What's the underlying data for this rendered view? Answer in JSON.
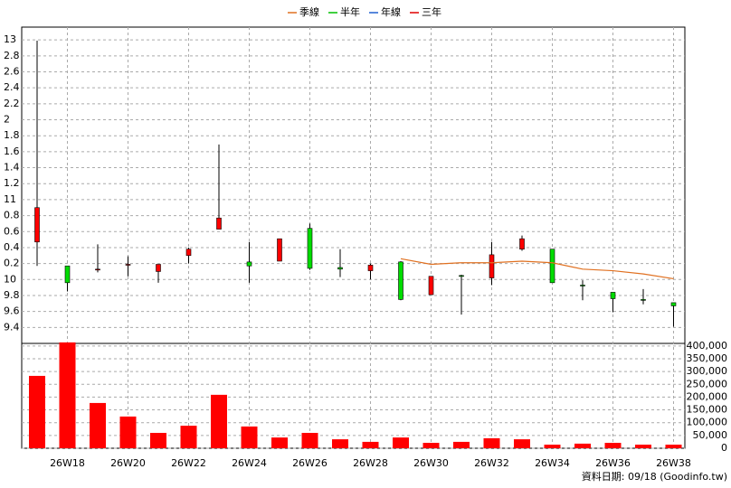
{
  "chart_data": [
    {
      "type": "candlestick",
      "categories": [
        null,
        "26W18",
        null,
        "26W20",
        null,
        "26W22",
        null,
        "26W24",
        null,
        "26W26",
        null,
        "26W28",
        null,
        "26W30",
        null,
        "26W32",
        null,
        "26W34",
        null,
        "26W36",
        null,
        "26W38"
      ],
      "open": [
        10.47,
        10.17,
        10.12,
        10.19,
        10.1,
        10.3,
        10.63,
        10.22,
        10.23,
        10.64,
        10.15,
        10.11,
        10.22,
        9.81,
        10.05,
        10.02,
        10.38,
        10.38,
        9.93,
        9.84,
        9.75,
        9.71
      ],
      "high": [
        12.99,
        10.17,
        10.44,
        10.29,
        10.19,
        10.4,
        11.69,
        10.47,
        10.51,
        10.7,
        10.38,
        10.2,
        10.23,
        10.04,
        10.06,
        10.47,
        10.55,
        10.38,
        9.99,
        9.84,
        9.88,
        9.71
      ],
      "low": [
        10.17,
        9.85,
        10.09,
        10.04,
        9.96,
        10.2,
        10.63,
        9.96,
        10.23,
        10.12,
        10.03,
        10.0,
        9.74,
        9.81,
        9.56,
        9.93,
        10.36,
        9.96,
        9.74,
        9.59,
        9.69,
        9.41
      ],
      "close": [
        10.9,
        9.96,
        10.13,
        10.19,
        10.19,
        10.38,
        10.77,
        10.17,
        10.51,
        10.14,
        10.13,
        10.18,
        9.75,
        10.04,
        10.04,
        10.31,
        10.51,
        9.96,
        9.92,
        9.76,
        9.74,
        9.67
      ],
      "up_color": "#ff0000",
      "down_color": "#00dd00",
      "series": [
        {
          "name": "季線",
          "color": "#e07020",
          "values": [
            null,
            null,
            null,
            null,
            null,
            null,
            null,
            null,
            null,
            null,
            null,
            null,
            10.26,
            10.19,
            10.21,
            10.21,
            10.23,
            10.21,
            10.13,
            10.11,
            10.07,
            10.01
          ]
        },
        {
          "name": "半年",
          "color": "#00c000",
          "values": [
            null,
            null,
            null,
            null,
            null,
            null,
            null,
            null,
            null,
            null,
            null,
            null,
            null,
            null,
            null,
            null,
            null,
            null,
            null,
            null,
            null,
            null
          ]
        },
        {
          "name": "年線",
          "color": "#2060d0",
          "values": [
            null,
            null,
            null,
            null,
            null,
            null,
            null,
            null,
            null,
            null,
            null,
            null,
            null,
            null,
            null,
            null,
            null,
            null,
            null,
            null,
            null,
            null
          ]
        },
        {
          "name": "三年",
          "color": "#e00000",
          "values": [
            null,
            null,
            null,
            null,
            null,
            null,
            null,
            null,
            null,
            null,
            null,
            null,
            null,
            null,
            null,
            null,
            null,
            null,
            null,
            null,
            null,
            null
          ]
        }
      ],
      "ylim": [
        9.2,
        13.16
      ],
      "yticks": [
        13,
        {
          "value": 12.8,
          "label": "2.8"
        },
        {
          "value": 12.6,
          "label": "2.6"
        },
        {
          "value": 12.4,
          "label": "2.4"
        },
        {
          "value": 12.2,
          "label": "2.2"
        },
        {
          "value": 12,
          "label": "2"
        },
        {
          "value": 11.8,
          "label": "1.8"
        },
        {
          "value": 11.6,
          "label": "1.6"
        },
        {
          "value": 11.4,
          "label": "1.4"
        },
        {
          "value": 11.2,
          "label": "1.2"
        },
        11,
        {
          "value": 10.8,
          "label": "0.8"
        },
        {
          "value": 10.6,
          "label": "0.6"
        },
        {
          "value": 10.4,
          "label": "0.4"
        },
        {
          "value": 10.2,
          "label": "0.2"
        },
        10,
        9.8,
        9.6,
        9.4
      ],
      "grid": true
    },
    {
      "type": "bar",
      "values": [
        283000,
        414000,
        177000,
        124000,
        60000,
        88000,
        209000,
        85000,
        42000,
        60000,
        35000,
        25000,
        42000,
        21000,
        25000,
        39000,
        35000,
        14000,
        18000,
        21000,
        14000,
        14000
      ],
      "color": "#ff0000",
      "ylim": [
        0,
        410000
      ],
      "yticks": [
        {
          "value": 400000,
          "label": "400,000"
        },
        {
          "value": 350000,
          "label": "350,000"
        },
        {
          "value": 300000,
          "label": "300,000"
        },
        {
          "value": 250000,
          "label": "250,000"
        },
        {
          "value": 200000,
          "label": "200,000"
        },
        {
          "value": 150000,
          "label": "150,000"
        },
        {
          "value": 100000,
          "label": "100,000"
        },
        {
          "value": 50000,
          "label": "50,000"
        },
        0
      ],
      "grid": true
    }
  ],
  "footer": "資料日期: 09/18 (Goodinfo.tw)"
}
